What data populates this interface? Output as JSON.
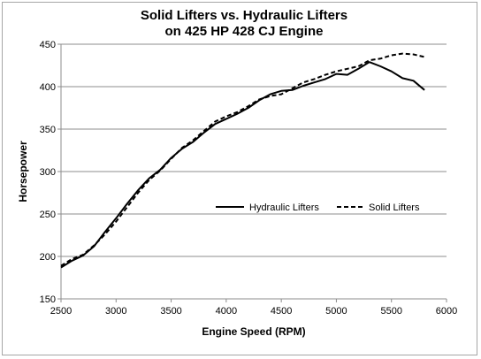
{
  "chart_data": {
    "type": "line",
    "title": [
      "Solid Lifters vs. Hydraulic Lifters",
      "on 425 HP 428 CJ Engine"
    ],
    "xlabel": "Engine Speed (RPM)",
    "ylabel": "Horsepower",
    "xlim": [
      2500,
      6000
    ],
    "ylim": [
      150,
      450
    ],
    "xticks": [
      2500,
      3000,
      3500,
      4000,
      4500,
      5000,
      5500,
      6000
    ],
    "yticks": [
      150,
      200,
      250,
      300,
      350,
      400,
      450
    ],
    "grid": "horizontal",
    "legend_placement": "center-right",
    "series": [
      {
        "name": "Hydraulic Lifters",
        "style": "solid",
        "color": "#000000",
        "x": [
          2500,
          2600,
          2700,
          2800,
          2900,
          3000,
          3100,
          3200,
          3300,
          3400,
          3500,
          3600,
          3700,
          3800,
          3900,
          4000,
          4100,
          4200,
          4300,
          4400,
          4500,
          4600,
          4700,
          4800,
          4900,
          5000,
          5100,
          5200,
          5300,
          5400,
          5500,
          5600,
          5700,
          5800
        ],
        "values": [
          187,
          195,
          201,
          212,
          229,
          245,
          262,
          278,
          292,
          302,
          316,
          327,
          335,
          346,
          356,
          362,
          368,
          375,
          384,
          391,
          395,
          396,
          401,
          405,
          409,
          415,
          414,
          421,
          429,
          424,
          418,
          410,
          407,
          396
        ]
      },
      {
        "name": "Solid Lifters",
        "style": "dashed",
        "color": "#000000",
        "x": [
          2500,
          2600,
          2700,
          2800,
          2900,
          3000,
          3100,
          3200,
          3300,
          3400,
          3500,
          3600,
          3700,
          3800,
          3900,
          4000,
          4100,
          4200,
          4300,
          4400,
          4500,
          4600,
          4700,
          4800,
          4900,
          5000,
          5100,
          5200,
          5300,
          5400,
          5500,
          5600,
          5700,
          5800
        ],
        "values": [
          189,
          197,
          202,
          213,
          226,
          241,
          258,
          275,
          290,
          301,
          315,
          328,
          337,
          348,
          359,
          365,
          370,
          377,
          385,
          389,
          391,
          398,
          405,
          409,
          414,
          418,
          421,
          424,
          431,
          433,
          437,
          439,
          438,
          435
        ]
      }
    ]
  }
}
